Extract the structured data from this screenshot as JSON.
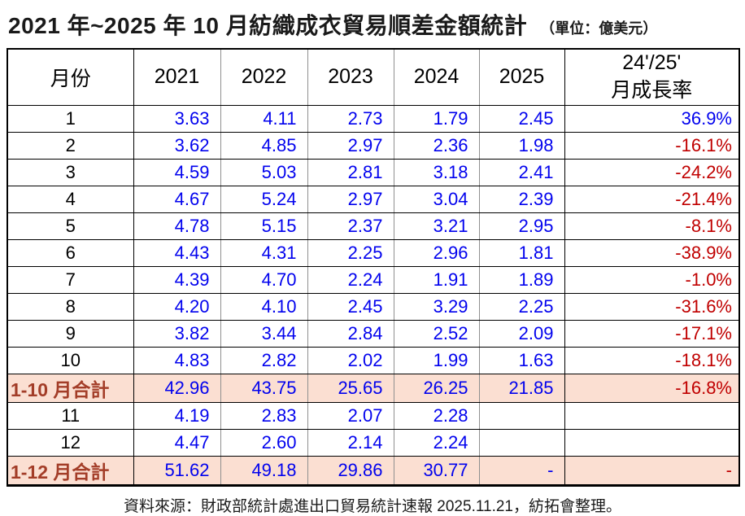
{
  "title": {
    "main": "2021 年~2025 年 10 月紡織成衣貿易順差金額統計",
    "unit": "（單位：億美元）"
  },
  "chart_data": {
    "type": "table",
    "title": "2021 年~2025 年 10 月紡織成衣貿易順差金額統計",
    "unit": "億美元",
    "headers": {
      "month": "月份",
      "years": [
        "2021",
        "2022",
        "2023",
        "2024",
        "2025"
      ],
      "growth_line1": "24'/25'",
      "growth_line2": "月成長率"
    },
    "rows": [
      {
        "label": "1",
        "values": [
          "3.63",
          "4.11",
          "2.73",
          "1.79",
          "2.45"
        ],
        "growth": "36.9%",
        "highlight": false
      },
      {
        "label": "2",
        "values": [
          "3.62",
          "4.85",
          "2.97",
          "2.36",
          "1.98"
        ],
        "growth": "-16.1%",
        "highlight": false
      },
      {
        "label": "3",
        "values": [
          "4.59",
          "5.03",
          "2.81",
          "3.18",
          "2.41"
        ],
        "growth": "-24.2%",
        "highlight": false
      },
      {
        "label": "4",
        "values": [
          "4.67",
          "5.24",
          "2.97",
          "3.04",
          "2.39"
        ],
        "growth": "-21.4%",
        "highlight": false
      },
      {
        "label": "5",
        "values": [
          "4.78",
          "5.15",
          "2.37",
          "3.21",
          "2.95"
        ],
        "growth": "-8.1%",
        "highlight": false
      },
      {
        "label": "6",
        "values": [
          "4.43",
          "4.31",
          "2.25",
          "2.96",
          "1.81"
        ],
        "growth": "-38.9%",
        "highlight": false
      },
      {
        "label": "7",
        "values": [
          "4.39",
          "4.70",
          "2.24",
          "1.91",
          "1.89"
        ],
        "growth": "-1.0%",
        "highlight": false
      },
      {
        "label": "8",
        "values": [
          "4.20",
          "4.10",
          "2.45",
          "3.29",
          "2.25"
        ],
        "growth": "-31.6%",
        "highlight": false
      },
      {
        "label": "9",
        "values": [
          "3.82",
          "3.44",
          "2.84",
          "2.52",
          "2.09"
        ],
        "growth": "-17.1%",
        "highlight": false
      },
      {
        "label": "10",
        "values": [
          "4.83",
          "2.82",
          "2.02",
          "1.99",
          "1.63"
        ],
        "growth": "-18.1%",
        "highlight": false
      },
      {
        "label": "1-10 月合計",
        "values": [
          "42.96",
          "43.75",
          "25.65",
          "26.25",
          "21.85"
        ],
        "growth": "-16.8%",
        "highlight": true
      },
      {
        "label": "11",
        "values": [
          "4.19",
          "2.83",
          "2.07",
          "2.28",
          ""
        ],
        "growth": "",
        "highlight": false
      },
      {
        "label": "12",
        "values": [
          "4.47",
          "2.60",
          "2.14",
          "2.24",
          ""
        ],
        "growth": "",
        "highlight": false
      },
      {
        "label": "1-12 月合計",
        "values": [
          "51.62",
          "49.18",
          "29.86",
          "30.77",
          "-"
        ],
        "growth": "-",
        "highlight": true
      }
    ]
  },
  "footer": "資料來源：財政部統計處進出口貿易統計速報 2025.11.21，紡拓會整理。",
  "colors": {
    "value_blue": "#0202EE",
    "negative_red": "#C00000",
    "summary_brown": "#A33D28",
    "summary_pink": "#FBDFD2"
  }
}
